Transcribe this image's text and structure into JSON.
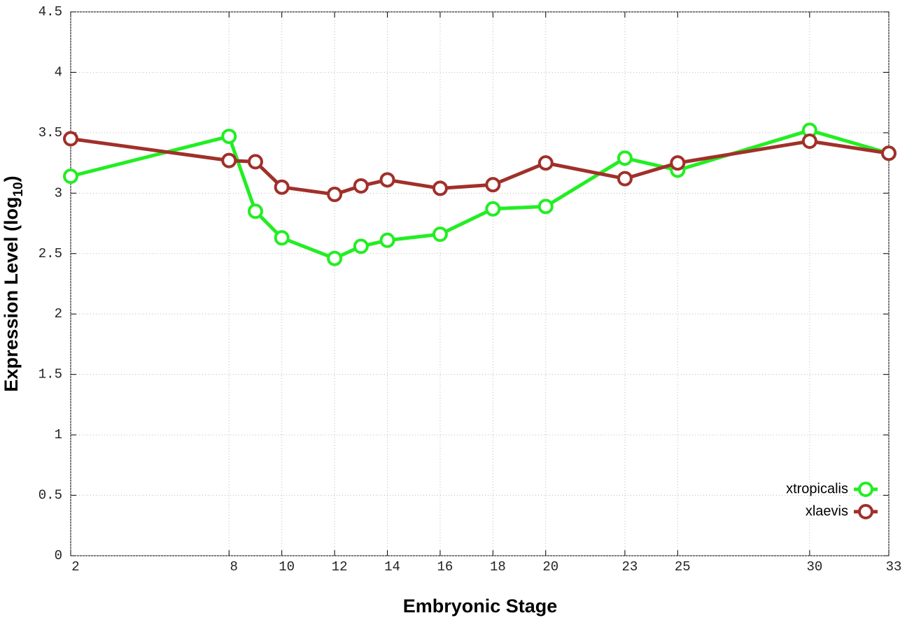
{
  "chart_data": {
    "type": "line",
    "xlabel": "Embryonic Stage",
    "ylabel": [
      "Expression Level (log",
      "10",
      ")"
    ],
    "x": [
      2,
      8,
      9,
      10,
      12,
      13,
      14,
      16,
      18,
      20,
      23,
      25,
      30,
      33
    ],
    "series": [
      {
        "name": "xtropicalis",
        "color": "#22ee22",
        "values": [
          3.14,
          3.47,
          2.85,
          2.63,
          2.46,
          2.56,
          2.61,
          2.66,
          2.87,
          2.89,
          3.29,
          3.19,
          3.52,
          3.33
        ]
      },
      {
        "name": "xlaevis",
        "color": "#a0302a",
        "values": [
          3.45,
          3.27,
          3.26,
          3.05,
          2.99,
          3.06,
          3.11,
          3.04,
          3.07,
          3.25,
          3.12,
          3.25,
          3.43,
          3.33
        ]
      }
    ],
    "xlim": [
      2,
      33
    ],
    "xticks": [
      2,
      8,
      10,
      12,
      14,
      16,
      18,
      20,
      23,
      25,
      30,
      33
    ],
    "ylim": [
      0,
      4.5
    ],
    "yticks": [
      0,
      0.5,
      1,
      1.5,
      2,
      2.5,
      3,
      3.5,
      4,
      4.5
    ],
    "grid": true,
    "legend": "lower right"
  }
}
